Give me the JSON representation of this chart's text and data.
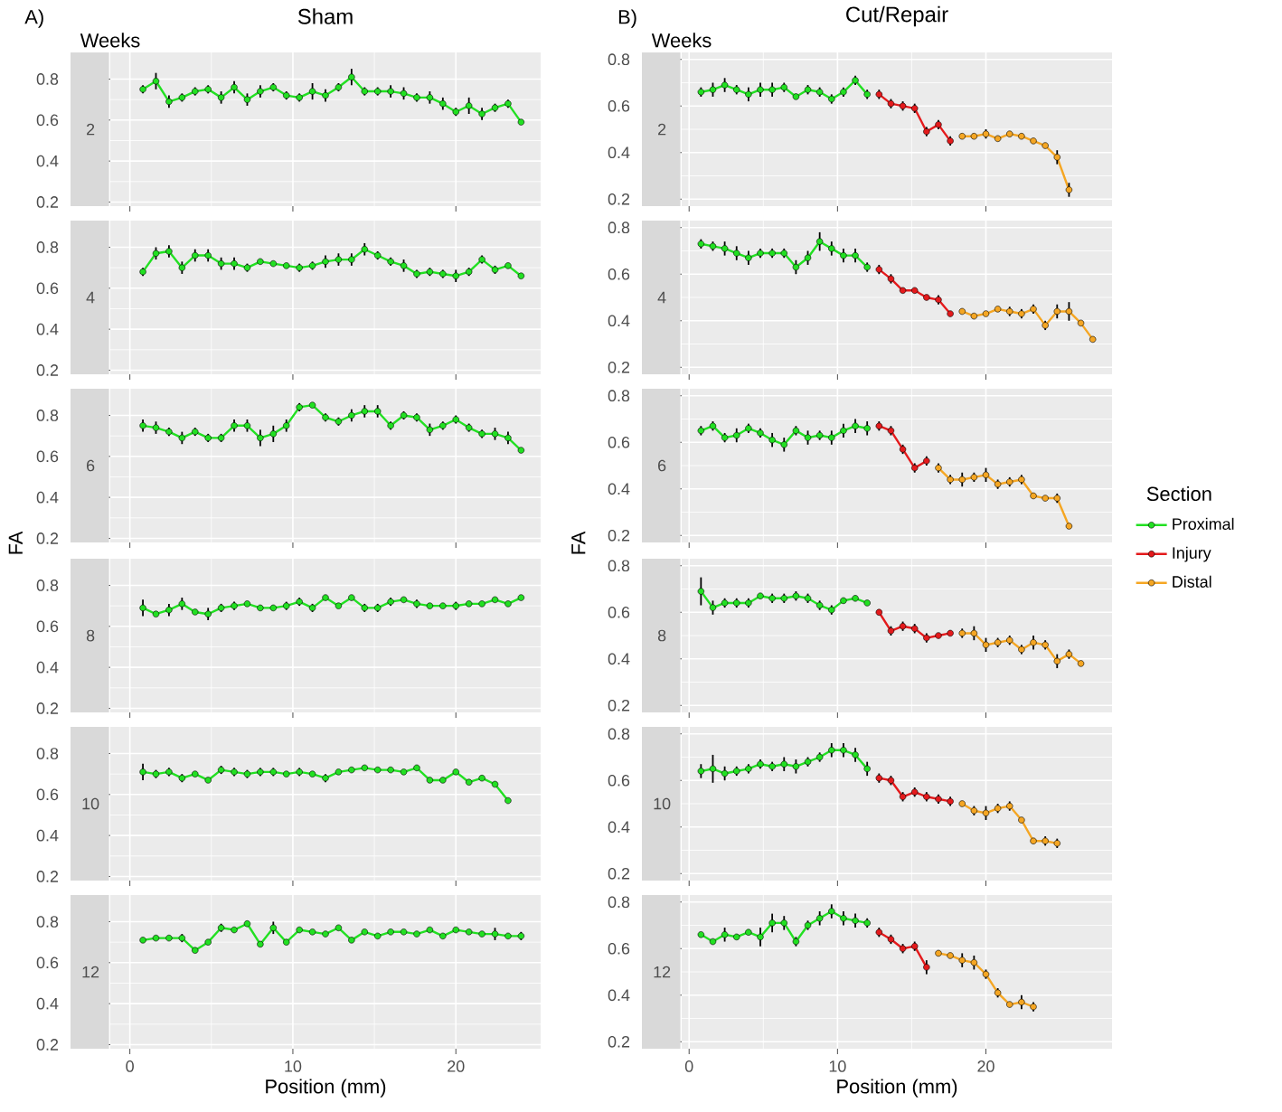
{
  "chart_data": [
    {
      "type": "line",
      "title": "Sham",
      "subtitle": "2",
      "annotations": [
        "A)",
        "Weeks"
      ],
      "marker": "circle",
      "grid": true,
      "tick_labels": "y",
      "xlim": [
        -1.2,
        25.2
      ],
      "ylim": [
        0.18,
        0.93
      ],
      "xticks": [
        0,
        10,
        20
      ],
      "yticks": [
        0.2,
        0.4,
        0.6,
        0.8
      ],
      "x": [
        0.8,
        1.6,
        2.4,
        3.2,
        4,
        4.8,
        5.6,
        6.4,
        7.2,
        8,
        8.8,
        9.6,
        10.4,
        11.2,
        12,
        12.8,
        13.6,
        14.4,
        15.2,
        16,
        16.8,
        17.6,
        18.4,
        19.2,
        20,
        20.8,
        21.6,
        22.4,
        23.2,
        24
      ],
      "series": [
        {
          "color": "#22e022",
          "values": [
            0.75,
            0.79,
            0.69,
            0.71,
            0.74,
            0.75,
            0.71,
            0.76,
            0.7,
            0.74,
            0.76,
            0.72,
            0.71,
            0.74,
            0.72,
            0.76,
            0.81,
            0.74,
            0.74,
            0.74,
            0.73,
            0.71,
            0.71,
            0.68,
            0.64,
            0.67,
            0.63,
            0.66,
            0.68,
            0.59
          ],
          "errors": [
            0.02,
            0.04,
            0.03,
            0.02,
            0.02,
            0.02,
            0.03,
            0.03,
            0.03,
            0.03,
            0.02,
            0.02,
            0.02,
            0.04,
            0.03,
            0.02,
            0.04,
            0.02,
            0.02,
            0.03,
            0.03,
            0.02,
            0.03,
            0.03,
            0.02,
            0.04,
            0.03,
            0.02,
            0.02,
            0.01
          ]
        }
      ]
    },
    {
      "type": "line",
      "subtitle": "4",
      "marker": "circle",
      "grid": true,
      "tick_labels": "y",
      "xlim": [
        -1.2,
        25.2
      ],
      "ylim": [
        0.18,
        0.93
      ],
      "xticks": [
        0,
        10,
        20
      ],
      "yticks": [
        0.2,
        0.4,
        0.6,
        0.8
      ],
      "x": [
        0.8,
        1.6,
        2.4,
        3.2,
        4,
        4.8,
        5.6,
        6.4,
        7.2,
        8,
        8.8,
        9.6,
        10.4,
        11.2,
        12,
        12.8,
        13.6,
        14.4,
        15.2,
        16,
        16.8,
        17.6,
        18.4,
        19.2,
        20,
        20.8,
        21.6,
        22.4,
        23.2,
        24
      ],
      "series": [
        {
          "color": "#22e022",
          "values": [
            0.68,
            0.77,
            0.78,
            0.7,
            0.76,
            0.76,
            0.72,
            0.72,
            0.7,
            0.73,
            0.72,
            0.71,
            0.7,
            0.71,
            0.73,
            0.74,
            0.74,
            0.79,
            0.76,
            0.73,
            0.71,
            0.67,
            0.68,
            0.67,
            0.66,
            0.68,
            0.74,
            0.69,
            0.71,
            0.66
          ],
          "errors": [
            0.02,
            0.03,
            0.03,
            0.03,
            0.03,
            0.03,
            0.03,
            0.03,
            0.02,
            0.01,
            0.01,
            0.01,
            0.02,
            0.02,
            0.03,
            0.03,
            0.03,
            0.03,
            0.02,
            0.02,
            0.03,
            0.02,
            0.02,
            0.02,
            0.03,
            0.02,
            0.02,
            0.02,
            0.01,
            0.01
          ]
        }
      ]
    },
    {
      "type": "line",
      "subtitle": "6",
      "marker": "circle",
      "grid": true,
      "tick_labels": "y",
      "xlim": [
        -1.2,
        25.2
      ],
      "ylim": [
        0.18,
        0.93
      ],
      "xticks": [
        0,
        10,
        20
      ],
      "yticks": [
        0.2,
        0.4,
        0.6,
        0.8
      ],
      "x": [
        0.8,
        1.6,
        2.4,
        3.2,
        4,
        4.8,
        5.6,
        6.4,
        7.2,
        8,
        8.8,
        9.6,
        10.4,
        11.2,
        12,
        12.8,
        13.6,
        14.4,
        15.2,
        16,
        16.8,
        17.6,
        18.4,
        19.2,
        20,
        20.8,
        21.6,
        22.4,
        23.2,
        24
      ],
      "series": [
        {
          "color": "#22e022",
          "values": [
            0.75,
            0.74,
            0.72,
            0.69,
            0.72,
            0.69,
            0.69,
            0.75,
            0.75,
            0.69,
            0.71,
            0.75,
            0.84,
            0.85,
            0.79,
            0.77,
            0.8,
            0.82,
            0.82,
            0.75,
            0.8,
            0.79,
            0.73,
            0.75,
            0.78,
            0.74,
            0.71,
            0.71,
            0.69,
            0.63
          ],
          "errors": [
            0.03,
            0.03,
            0.02,
            0.03,
            0.02,
            0.02,
            0.02,
            0.03,
            0.03,
            0.04,
            0.04,
            0.03,
            0.02,
            0.01,
            0.02,
            0.02,
            0.03,
            0.03,
            0.03,
            0.02,
            0.02,
            0.02,
            0.03,
            0.02,
            0.02,
            0.02,
            0.02,
            0.03,
            0.03,
            0.01
          ]
        }
      ]
    },
    {
      "type": "line",
      "subtitle": "8",
      "ylabel": "FA",
      "marker": "circle",
      "grid": true,
      "tick_labels": "y",
      "xlim": [
        -1.2,
        25.2
      ],
      "ylim": [
        0.18,
        0.93
      ],
      "xticks": [
        0,
        10,
        20
      ],
      "yticks": [
        0.2,
        0.4,
        0.6,
        0.8
      ],
      "x": [
        0.8,
        1.6,
        2.4,
        3.2,
        4,
        4.8,
        5.6,
        6.4,
        7.2,
        8,
        8.8,
        9.6,
        10.4,
        11.2,
        12,
        12.8,
        13.6,
        14.4,
        15.2,
        16,
        16.8,
        17.6,
        18.4,
        19.2,
        20,
        20.8,
        21.6,
        22.4,
        23.2,
        24
      ],
      "series": [
        {
          "color": "#22e022",
          "values": [
            0.69,
            0.66,
            0.68,
            0.71,
            0.67,
            0.66,
            0.69,
            0.7,
            0.71,
            0.69,
            0.69,
            0.7,
            0.72,
            0.69,
            0.74,
            0.7,
            0.74,
            0.69,
            0.69,
            0.72,
            0.73,
            0.71,
            0.7,
            0.7,
            0.7,
            0.71,
            0.71,
            0.73,
            0.71,
            0.74
          ],
          "errors": [
            0.04,
            0.01,
            0.03,
            0.03,
            0.01,
            0.03,
            0.02,
            0.02,
            0.01,
            0.01,
            0.01,
            0.02,
            0.02,
            0.02,
            0.01,
            0.01,
            0.01,
            0.02,
            0.02,
            0.02,
            0.01,
            0.02,
            0.01,
            0.01,
            0.02,
            0.01,
            0.01,
            0.01,
            0.01,
            0.01
          ]
        }
      ]
    },
    {
      "type": "line",
      "subtitle": "10",
      "marker": "circle",
      "grid": true,
      "tick_labels": "y",
      "xlim": [
        -1.2,
        25.2
      ],
      "ylim": [
        0.18,
        0.93
      ],
      "xticks": [
        0,
        10,
        20
      ],
      "yticks": [
        0.2,
        0.4,
        0.6,
        0.8
      ],
      "x": [
        0.8,
        1.6,
        2.4,
        3.2,
        4,
        4.8,
        5.6,
        6.4,
        7.2,
        8,
        8.8,
        9.6,
        10.4,
        11.2,
        12,
        12.8,
        13.6,
        14.4,
        15.2,
        16,
        16.8,
        17.6,
        18.4,
        19.2,
        20,
        20.8,
        21.6,
        22.4,
        23.2
      ],
      "series": [
        {
          "color": "#22e022",
          "values": [
            0.71,
            0.7,
            0.71,
            0.68,
            0.7,
            0.67,
            0.72,
            0.71,
            0.7,
            0.71,
            0.71,
            0.7,
            0.71,
            0.7,
            0.68,
            0.71,
            0.72,
            0.73,
            0.72,
            0.72,
            0.71,
            0.73,
            0.67,
            0.67,
            0.71,
            0.66,
            0.68,
            0.65,
            0.57
          ],
          "errors": [
            0.04,
            0.02,
            0.02,
            0.02,
            0.01,
            0.01,
            0.02,
            0.02,
            0.02,
            0.02,
            0.02,
            0.01,
            0.02,
            0.01,
            0.02,
            0.01,
            0.01,
            0.01,
            0.01,
            0.01,
            0.01,
            0.01,
            0.01,
            0.01,
            0.01,
            0.01,
            0.01,
            0.01,
            0.01
          ]
        }
      ]
    },
    {
      "type": "line",
      "subtitle": "12",
      "xlabel": "Position (mm)",
      "marker": "circle",
      "grid": true,
      "xlim": [
        -1.2,
        25.2
      ],
      "ylim": [
        0.18,
        0.93
      ],
      "xticks": [
        0,
        10,
        20
      ],
      "yticks": [
        0.2,
        0.4,
        0.6,
        0.8
      ],
      "x": [
        0.8,
        1.6,
        2.4,
        3.2,
        4,
        4.8,
        5.6,
        6.4,
        7.2,
        8,
        8.8,
        9.6,
        10.4,
        11.2,
        12,
        12.8,
        13.6,
        14.4,
        15.2,
        16,
        16.8,
        17.6,
        18.4,
        19.2,
        20,
        20.8,
        21.6,
        22.4,
        23.2,
        24
      ],
      "series": [
        {
          "color": "#22e022",
          "values": [
            0.71,
            0.72,
            0.72,
            0.72,
            0.66,
            0.7,
            0.77,
            0.76,
            0.79,
            0.69,
            0.77,
            0.7,
            0.76,
            0.75,
            0.74,
            0.77,
            0.71,
            0.75,
            0.73,
            0.75,
            0.75,
            0.74,
            0.76,
            0.73,
            0.76,
            0.75,
            0.74,
            0.74,
            0.73,
            0.73
          ],
          "errors": [
            0.01,
            0.01,
            0.01,
            0.02,
            0.01,
            0.01,
            0.02,
            0.01,
            0.01,
            0.01,
            0.03,
            0.01,
            0.01,
            0.01,
            0.01,
            0.01,
            0.01,
            0.01,
            0.01,
            0.01,
            0.01,
            0.01,
            0.01,
            0.01,
            0.01,
            0.01,
            0.01,
            0.03,
            0.01,
            0.02
          ]
        }
      ]
    },
    {
      "type": "line",
      "title": "Cut/Repair",
      "subtitle": "2",
      "annotations": [
        "B)",
        "Weeks"
      ],
      "marker": "circle",
      "grid": true,
      "tick_labels": "y",
      "xlim": [
        -0.5,
        28.5
      ],
      "ylim": [
        0.17,
        0.83
      ],
      "xticks": [
        0,
        10,
        20
      ],
      "yticks": [
        0.2,
        0.4,
        0.6,
        0.8
      ],
      "series": [
        {
          "color": "#22e022",
          "x": [
            0.8,
            1.6,
            2.4,
            3.2,
            4,
            4.8,
            5.6,
            6.4,
            7.2,
            8,
            8.8,
            9.6,
            10.4,
            11.2,
            12
          ],
          "values": [
            0.66,
            0.67,
            0.69,
            0.67,
            0.65,
            0.67,
            0.67,
            0.68,
            0.64,
            0.67,
            0.66,
            0.63,
            0.66,
            0.71,
            0.65
          ],
          "errors": [
            0.02,
            0.03,
            0.03,
            0.02,
            0.03,
            0.03,
            0.03,
            0.02,
            0.01,
            0.02,
            0.02,
            0.02,
            0.02,
            0.02,
            0.02
          ]
        },
        {
          "color": "#e41a1c",
          "x": [
            12.8,
            13.6,
            14.4,
            15.2,
            16,
            16.8,
            17.6
          ],
          "values": [
            0.65,
            0.61,
            0.6,
            0.59,
            0.49,
            0.52,
            0.45
          ],
          "errors": [
            0.02,
            0.02,
            0.02,
            0.02,
            0.02,
            0.02,
            0.02
          ]
        },
        {
          "color": "#f5a623",
          "x": [
            18.4,
            19.2,
            20,
            20.8,
            21.6,
            22.4,
            23.2,
            24,
            24.8,
            25.6
          ],
          "values": [
            0.47,
            0.47,
            0.48,
            0.46,
            0.48,
            0.47,
            0.45,
            0.43,
            0.38,
            0.24
          ],
          "errors": [
            0.01,
            0.01,
            0.02,
            0.01,
            0.01,
            0.01,
            0.01,
            0.01,
            0.03,
            0.03
          ]
        }
      ]
    },
    {
      "type": "line",
      "subtitle": "4",
      "marker": "circle",
      "grid": true,
      "tick_labels": "y",
      "xlim": [
        -0.5,
        28.5
      ],
      "ylim": [
        0.17,
        0.83
      ],
      "xticks": [
        0,
        10,
        20
      ],
      "yticks": [
        0.2,
        0.4,
        0.6,
        0.8
      ],
      "series": [
        {
          "color": "#22e022",
          "x": [
            0.8,
            1.6,
            2.4,
            3.2,
            4,
            4.8,
            5.6,
            6.4,
            7.2,
            8,
            8.8,
            9.6,
            10.4,
            11.2,
            12
          ],
          "values": [
            0.73,
            0.72,
            0.71,
            0.69,
            0.67,
            0.69,
            0.69,
            0.69,
            0.63,
            0.67,
            0.74,
            0.71,
            0.68,
            0.68,
            0.63
          ],
          "errors": [
            0.02,
            0.02,
            0.03,
            0.03,
            0.03,
            0.02,
            0.02,
            0.02,
            0.03,
            0.03,
            0.04,
            0.03,
            0.03,
            0.03,
            0.02
          ]
        },
        {
          "color": "#e41a1c",
          "x": [
            12.8,
            13.6,
            14.4,
            15.2,
            16,
            16.8,
            17.6
          ],
          "values": [
            0.62,
            0.58,
            0.53,
            0.53,
            0.5,
            0.49,
            0.43
          ],
          "errors": [
            0.02,
            0.02,
            0.01,
            0.01,
            0.01,
            0.02,
            0.01
          ]
        },
        {
          "color": "#f5a623",
          "x": [
            18.4,
            19.2,
            20,
            20.8,
            21.6,
            22.4,
            23.2,
            24,
            24.8,
            25.6,
            26.4,
            27.2
          ],
          "values": [
            0.44,
            0.42,
            0.43,
            0.45,
            0.44,
            0.43,
            0.45,
            0.38,
            0.44,
            0.44,
            0.39,
            0.32
          ],
          "errors": [
            0.01,
            0.01,
            0.01,
            0.01,
            0.02,
            0.02,
            0.02,
            0.02,
            0.03,
            0.04,
            0.01,
            0.01
          ]
        }
      ]
    },
    {
      "type": "line",
      "subtitle": "6",
      "marker": "circle",
      "grid": true,
      "tick_labels": "y",
      "xlim": [
        -0.5,
        28.5
      ],
      "ylim": [
        0.17,
        0.83
      ],
      "xticks": [
        0,
        10,
        20
      ],
      "yticks": [
        0.2,
        0.4,
        0.6,
        0.8
      ],
      "series": [
        {
          "color": "#22e022",
          "x": [
            0.8,
            1.6,
            2.4,
            3.2,
            4,
            4.8,
            5.6,
            6.4,
            7.2,
            8,
            8.8,
            9.6,
            10.4,
            11.2,
            12
          ],
          "values": [
            0.65,
            0.67,
            0.62,
            0.63,
            0.66,
            0.64,
            0.61,
            0.59,
            0.65,
            0.62,
            0.63,
            0.62,
            0.65,
            0.67,
            0.66
          ],
          "errors": [
            0.02,
            0.02,
            0.02,
            0.03,
            0.02,
            0.02,
            0.03,
            0.03,
            0.02,
            0.03,
            0.02,
            0.03,
            0.03,
            0.03,
            0.03
          ]
        },
        {
          "color": "#e41a1c",
          "x": [
            12.8,
            13.6,
            14.4,
            15.2,
            16
          ],
          "values": [
            0.67,
            0.65,
            0.57,
            0.49,
            0.52
          ],
          "errors": [
            0.02,
            0.02,
            0.02,
            0.02,
            0.02
          ]
        },
        {
          "color": "#f5a623",
          "x": [
            16.8,
            17.6,
            18.4,
            19.2,
            20,
            20.8,
            21.6,
            22.4,
            23.2,
            24,
            24.8,
            25.6
          ],
          "values": [
            0.49,
            0.44,
            0.44,
            0.45,
            0.46,
            0.42,
            0.43,
            0.44,
            0.37,
            0.36,
            0.36,
            0.24
          ],
          "errors": [
            0.02,
            0.02,
            0.03,
            0.02,
            0.03,
            0.02,
            0.02,
            0.02,
            0.01,
            0.01,
            0.02,
            0.01
          ]
        }
      ]
    },
    {
      "type": "line",
      "subtitle": "8",
      "ylabel": "FA",
      "legend": "right",
      "legend_title": "Section",
      "marker": "circle",
      "grid": true,
      "tick_labels": "y",
      "xlim": [
        -0.5,
        28.5
      ],
      "ylim": [
        0.17,
        0.83
      ],
      "xticks": [
        0,
        10,
        20
      ],
      "yticks": [
        0.2,
        0.4,
        0.6,
        0.8
      ],
      "series": [
        {
          "name": "Proximal",
          "color": "#22e022",
          "x": [
            0.8,
            1.6,
            2.4,
            3.2,
            4,
            4.8,
            5.6,
            6.4,
            7.2,
            8,
            8.8,
            9.6,
            10.4,
            11.2,
            12
          ],
          "values": [
            0.69,
            0.62,
            0.64,
            0.64,
            0.64,
            0.67,
            0.66,
            0.66,
            0.67,
            0.66,
            0.63,
            0.61,
            0.65,
            0.66,
            0.64
          ],
          "errors": [
            0.06,
            0.03,
            0.02,
            0.02,
            0.02,
            0.01,
            0.02,
            0.02,
            0.02,
            0.02,
            0.02,
            0.02,
            0.01,
            0.01,
            0.01
          ]
        },
        {
          "name": "Injury",
          "color": "#e41a1c",
          "x": [
            12.8,
            13.6,
            14.4,
            15.2,
            16,
            16.8,
            17.6
          ],
          "values": [
            0.6,
            0.52,
            0.54,
            0.53,
            0.49,
            0.5,
            0.51
          ],
          "errors": [
            0.01,
            0.02,
            0.02,
            0.02,
            0.02,
            0.01,
            0.01
          ]
        },
        {
          "name": "Distal",
          "color": "#f5a623",
          "x": [
            18.4,
            19.2,
            20,
            20.8,
            21.6,
            22.4,
            23.2,
            24,
            24.8,
            25.6,
            26.4
          ],
          "values": [
            0.51,
            0.51,
            0.46,
            0.47,
            0.48,
            0.44,
            0.47,
            0.46,
            0.39,
            0.42,
            0.38
          ],
          "errors": [
            0.02,
            0.03,
            0.03,
            0.02,
            0.02,
            0.02,
            0.03,
            0.02,
            0.03,
            0.02,
            0.01
          ]
        }
      ]
    },
    {
      "type": "line",
      "subtitle": "10",
      "marker": "circle",
      "grid": true,
      "tick_labels": "y",
      "xlim": [
        -0.5,
        28.5
      ],
      "ylim": [
        0.17,
        0.83
      ],
      "xticks": [
        0,
        10,
        20
      ],
      "yticks": [
        0.2,
        0.4,
        0.6,
        0.8
      ],
      "series": [
        {
          "color": "#22e022",
          "x": [
            0.8,
            1.6,
            2.4,
            3.2,
            4,
            4.8,
            5.6,
            6.4,
            7.2,
            8,
            8.8,
            9.6,
            10.4,
            11.2,
            12
          ],
          "values": [
            0.64,
            0.65,
            0.63,
            0.64,
            0.65,
            0.67,
            0.66,
            0.67,
            0.66,
            0.68,
            0.7,
            0.73,
            0.73,
            0.71,
            0.65
          ],
          "errors": [
            0.03,
            0.06,
            0.03,
            0.02,
            0.02,
            0.02,
            0.02,
            0.03,
            0.03,
            0.02,
            0.02,
            0.03,
            0.03,
            0.03,
            0.03
          ]
        },
        {
          "color": "#e41a1c",
          "x": [
            12.8,
            13.6,
            14.4,
            15.2,
            16,
            16.8,
            17.6
          ],
          "values": [
            0.61,
            0.6,
            0.53,
            0.55,
            0.53,
            0.52,
            0.51
          ],
          "errors": [
            0.02,
            0.02,
            0.02,
            0.02,
            0.02,
            0.02,
            0.02
          ]
        },
        {
          "color": "#f5a623",
          "x": [
            18.4,
            19.2,
            20,
            20.8,
            21.6,
            22.4,
            23.2,
            24,
            24.8
          ],
          "values": [
            0.5,
            0.47,
            0.46,
            0.48,
            0.49,
            0.43,
            0.34,
            0.34,
            0.33
          ],
          "errors": [
            0.01,
            0.02,
            0.03,
            0.02,
            0.02,
            0.01,
            0.01,
            0.02,
            0.02
          ]
        }
      ]
    },
    {
      "type": "line",
      "subtitle": "12",
      "xlabel": "Position (mm)",
      "marker": "circle",
      "grid": true,
      "xlim": [
        -0.5,
        28.5
      ],
      "ylim": [
        0.17,
        0.83
      ],
      "xticks": [
        0,
        10,
        20
      ],
      "yticks": [
        0.2,
        0.4,
        0.6,
        0.8
      ],
      "series": [
        {
          "color": "#22e022",
          "x": [
            0.8,
            1.6,
            2.4,
            3.2,
            4,
            4.8,
            5.6,
            6.4,
            7.2,
            8,
            8.8,
            9.6,
            10.4,
            11.2,
            12
          ],
          "values": [
            0.66,
            0.63,
            0.66,
            0.65,
            0.67,
            0.65,
            0.71,
            0.71,
            0.63,
            0.7,
            0.73,
            0.76,
            0.73,
            0.72,
            0.71
          ],
          "errors": [
            0.01,
            0.01,
            0.03,
            0.01,
            0.01,
            0.04,
            0.04,
            0.03,
            0.02,
            0.02,
            0.03,
            0.03,
            0.03,
            0.03,
            0.02
          ]
        },
        {
          "color": "#e41a1c",
          "x": [
            12.8,
            13.6,
            14.4,
            15.2,
            16
          ],
          "values": [
            0.67,
            0.64,
            0.6,
            0.61,
            0.52
          ],
          "errors": [
            0.02,
            0.02,
            0.02,
            0.02,
            0.03
          ]
        },
        {
          "color": "#f5a623",
          "x": [
            16.8,
            17.6,
            18.4,
            19.2,
            20,
            20.8,
            21.6,
            22.4,
            23.2
          ],
          "values": [
            0.58,
            0.57,
            0.55,
            0.54,
            0.49,
            0.41,
            0.36,
            0.37,
            0.35
          ],
          "errors": [
            0.01,
            0.01,
            0.03,
            0.03,
            0.02,
            0.02,
            0.01,
            0.03,
            0.02
          ]
        }
      ]
    }
  ]
}
